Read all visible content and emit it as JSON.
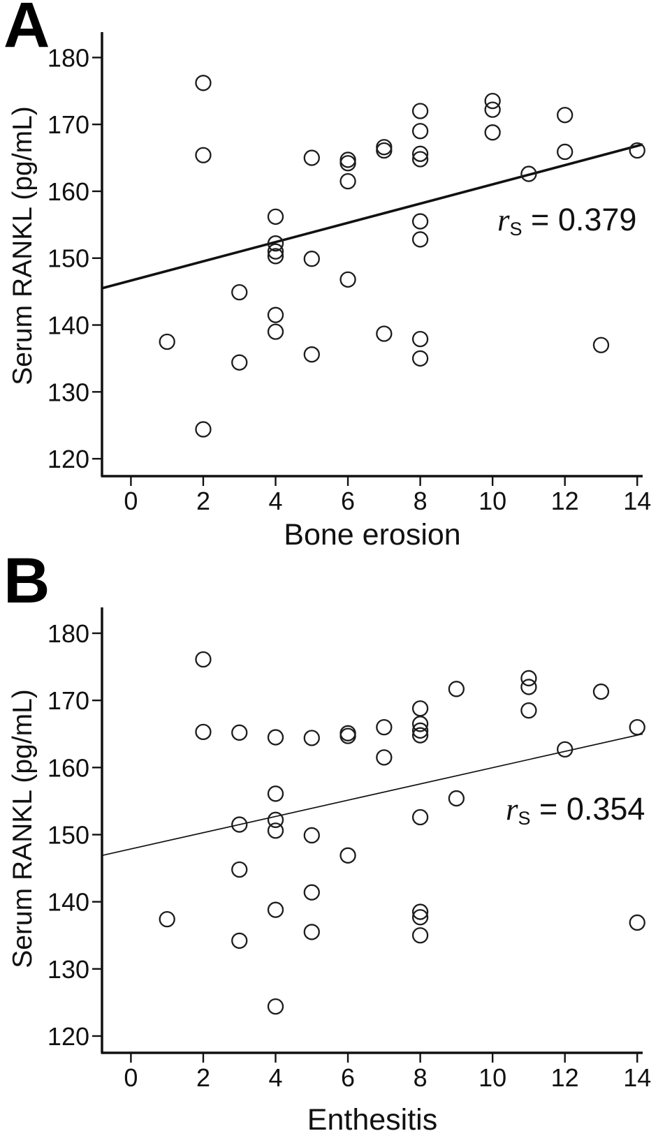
{
  "figure": {
    "background": "#ffffff",
    "ink_color": "#111111",
    "marker_style": "open-circle"
  },
  "chart_data": [
    {
      "type": "scatter",
      "panel_label": "A",
      "title": "",
      "xlabel": "Bone erosion",
      "ylabel": "Serum RANKL (pg/mL)",
      "annotation": {
        "var": "r",
        "sub": "S",
        "rest": " = 0.379",
        "full_text": "rS = 0.379",
        "spearman_rs": 0.379
      },
      "x_ticks": [
        0,
        2,
        4,
        6,
        8,
        10,
        12,
        14
      ],
      "y_ticks": [
        120,
        130,
        140,
        150,
        160,
        170,
        180
      ],
      "xlim": [
        -0.8,
        14.15
      ],
      "ylim": [
        117.4,
        183.8
      ],
      "grid": false,
      "legend": "none",
      "marker": "open-circle",
      "trend_line": {
        "x": [
          -0.8,
          14.15
        ],
        "y": [
          145.5,
          167.0
        ],
        "stroke_width": 3.6
      },
      "points": [
        [
          1,
          137.5
        ],
        [
          2,
          176.2
        ],
        [
          2,
          165.4
        ],
        [
          2,
          124.4
        ],
        [
          3,
          144.9
        ],
        [
          3,
          134.4
        ],
        [
          4,
          156.2
        ],
        [
          4,
          152.2
        ],
        [
          4,
          151.0
        ],
        [
          4,
          150.3
        ],
        [
          4,
          141.5
        ],
        [
          4,
          139.0
        ],
        [
          5,
          165.0
        ],
        [
          5,
          149.9
        ],
        [
          5,
          135.6
        ],
        [
          6,
          164.7
        ],
        [
          6,
          164.2
        ],
        [
          6,
          161.5
        ],
        [
          6,
          146.8
        ],
        [
          7,
          166.6
        ],
        [
          7,
          166.1
        ],
        [
          7,
          138.7
        ],
        [
          8,
          172.0
        ],
        [
          8,
          169.0
        ],
        [
          8,
          165.6
        ],
        [
          8,
          164.8
        ],
        [
          8,
          155.5
        ],
        [
          8,
          152.8
        ],
        [
          8,
          137.9
        ],
        [
          8,
          135.0
        ],
        [
          10,
          173.5
        ],
        [
          10,
          172.2
        ],
        [
          10,
          168.8
        ],
        [
          11,
          162.6
        ],
        [
          12,
          171.4
        ],
        [
          12,
          165.9
        ],
        [
          13,
          137.0
        ],
        [
          14,
          166.1
        ]
      ]
    },
    {
      "type": "scatter",
      "panel_label": "B",
      "title": "",
      "xlabel": "Enthesitis",
      "ylabel": "Serum RANKL (pg/mL)",
      "annotation": {
        "var": "r",
        "sub": "S",
        "rest": " = 0.354",
        "full_text": "rS = 0.354",
        "spearman_rs": 0.354
      },
      "x_ticks": [
        0,
        2,
        4,
        6,
        8,
        10,
        12,
        14
      ],
      "y_ticks": [
        120,
        130,
        140,
        150,
        160,
        170,
        180
      ],
      "xlim": [
        -0.8,
        14.15
      ],
      "ylim": [
        117.5,
        183.85
      ],
      "grid": false,
      "legend": "none",
      "marker": "open-circle",
      "trend_line": {
        "x": [
          -0.8,
          14.15
        ],
        "y": [
          146.9,
          165.0
        ],
        "stroke_width": 1.7
      },
      "points": [
        [
          1,
          137.4
        ],
        [
          2,
          176.1
        ],
        [
          2,
          165.3
        ],
        [
          3,
          165.2
        ],
        [
          3,
          151.5
        ],
        [
          3,
          144.8
        ],
        [
          3,
          134.2
        ],
        [
          4,
          164.5
        ],
        [
          4,
          156.1
        ],
        [
          4,
          152.2
        ],
        [
          4,
          150.6
        ],
        [
          4,
          138.8
        ],
        [
          4,
          124.4
        ],
        [
          5,
          164.4
        ],
        [
          5,
          149.9
        ],
        [
          5,
          141.4
        ],
        [
          5,
          135.5
        ],
        [
          6,
          165.1
        ],
        [
          6,
          164.7
        ],
        [
          6,
          146.9
        ],
        [
          7,
          166.0
        ],
        [
          7,
          161.5
        ],
        [
          8,
          168.8
        ],
        [
          8,
          166.5
        ],
        [
          8,
          165.5
        ],
        [
          8,
          164.8
        ],
        [
          8,
          152.6
        ],
        [
          8,
          138.5
        ],
        [
          8,
          137.7
        ],
        [
          8,
          135.0
        ],
        [
          9,
          171.7
        ],
        [
          9,
          155.4
        ],
        [
          11,
          173.3
        ],
        [
          11,
          172.0
        ],
        [
          11,
          168.5
        ],
        [
          12,
          162.7
        ],
        [
          13,
          171.3
        ],
        [
          14,
          166.0
        ],
        [
          14,
          136.9
        ]
      ]
    }
  ]
}
